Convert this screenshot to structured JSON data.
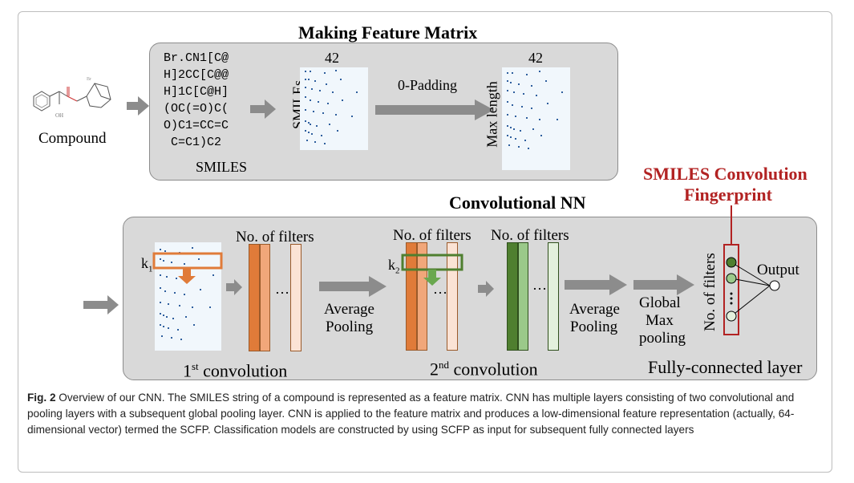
{
  "top_section": {
    "title": "Making Feature Matrix",
    "compound_label": "Compound",
    "smiles_lines": [
      "Br.CN1[C@",
      "H]2CC[C@@",
      "H]1C[C@H]",
      "(OC(=O)C(",
      "O)C1=CC=C",
      " C=C1)C2"
    ],
    "smiles_label": "SMILES",
    "matrix1_width_label": "42",
    "matrix1_height_label": "SMILEs",
    "padding_label": "0-Padding",
    "matrix2_width_label": "42",
    "matrix2_height_label": "Max length"
  },
  "bottom_section": {
    "title": "Convolutional NN",
    "k1": "k",
    "k1_sub": "1",
    "k2": "k",
    "k2_sub": "2",
    "filters_label_1": "No. of filters",
    "filters_label_2": "No. of filters",
    "filters_label_3": "No. of filters",
    "filters_label_vertical": "No. of filters",
    "dots": "…",
    "avg_pool_1_a": "Average",
    "avg_pool_1_b": "Pooling",
    "avg_pool_2_a": "Average",
    "avg_pool_2_b": "Pooling",
    "global_a": "Global",
    "global_b": "Max",
    "global_c": "pooling",
    "output_label": "Output",
    "conv1_num": "1",
    "conv1_sup": "st",
    "conv1_word": " convolution",
    "conv2_num": "2",
    "conv2_sup": "nd",
    "conv2_word": " convolution",
    "fc_label": "Fully-connected layer"
  },
  "scfp": {
    "line1": "SMILES Convolution",
    "line2": "Fingerprint",
    "color": "#b22222"
  },
  "colors": {
    "orange_dark": "#e07b39",
    "orange_mid": "#f1a77a",
    "orange_light": "#fbe3d5",
    "green_dark": "#4f7f2f",
    "green_mid": "#9bc98a",
    "green_light": "#e3f0dc",
    "arrow_gray": "#8c8c8c"
  },
  "caption": {
    "fig_label": "Fig. 2",
    "text": " Overview of our CNN. The SMILES string of a compound is represented as a feature matrix. CNN has multiple layers consisting of two convolutional and pooling layers with a subsequent global pooling layer. CNN is applied to the feature matrix and produces a low-dimensional feature representation (actually, 64-dimensional vector) termed the SCFP. Classification models are constructed by using SCFP as input for subsequent fully connected layers"
  }
}
